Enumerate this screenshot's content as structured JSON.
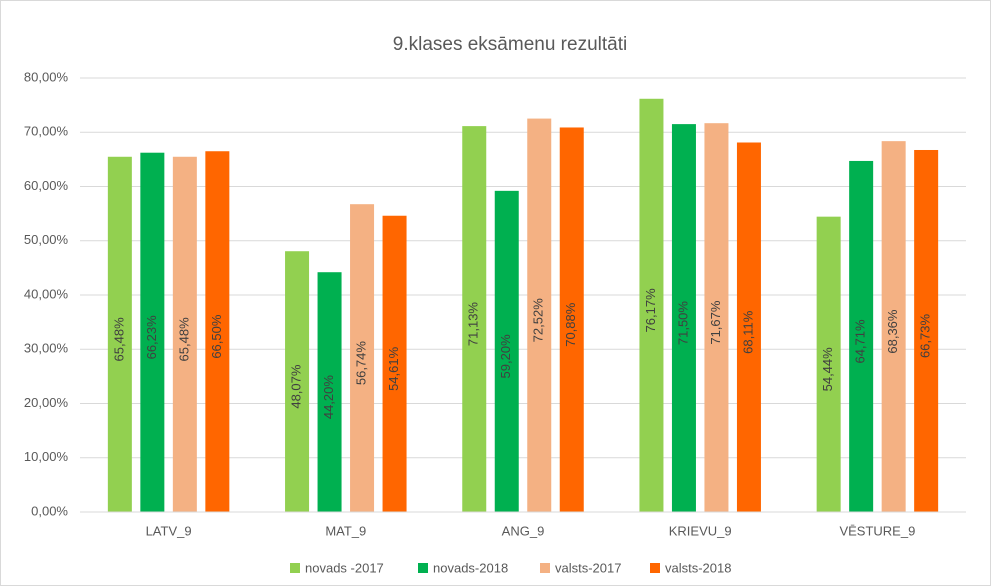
{
  "chart_data": {
    "type": "bar",
    "title": "9.klases eksāmenu rezultāti",
    "categories": [
      "LATV_9",
      "MAT_9",
      "ANG_9",
      "KRIEVU_9",
      "VĒSTURE_9"
    ],
    "series": [
      {
        "name": "novads -2017",
        "color": "#92d050",
        "values": [
          65.48,
          48.07,
          71.13,
          76.17,
          54.44
        ],
        "value_labels": [
          "65,48%",
          "48,07%",
          "71,13%",
          "76,17%",
          "54,44%"
        ]
      },
      {
        "name": "novads-2018",
        "color": "#00b050",
        "values": [
          66.23,
          44.2,
          59.2,
          71.5,
          64.71
        ],
        "value_labels": [
          "66,23%",
          "44,20%",
          "59,20%",
          "71,50%",
          "64,71%"
        ]
      },
      {
        "name": "valsts-2017",
        "color": "#f4b183",
        "values": [
          65.48,
          56.74,
          72.52,
          71.67,
          68.36
        ],
        "value_labels": [
          "65,48%",
          "56,74%",
          "72,52%",
          "71,67%",
          "68,36%"
        ]
      },
      {
        "name": "valsts-2018",
        "color": "#ff6600",
        "values": [
          66.5,
          54.61,
          70.88,
          68.11,
          66.73
        ],
        "value_labels": [
          "66,50%",
          "54,61%",
          "70,88%",
          "68,11%",
          "66,73%"
        ]
      }
    ],
    "ylim": [
      0,
      80
    ],
    "yticks": [
      {
        "value": 0,
        "label": "0,00%"
      },
      {
        "value": 10,
        "label": "10,00%"
      },
      {
        "value": 20,
        "label": "20,00%"
      },
      {
        "value": 30,
        "label": "30,00%"
      },
      {
        "value": 40,
        "label": "40,00%"
      },
      {
        "value": 50,
        "label": "50,00%"
      },
      {
        "value": 60,
        "label": "60,00%"
      },
      {
        "value": 70,
        "label": "70,00%"
      },
      {
        "value": 80,
        "label": "80,00%"
      }
    ],
    "grid": true,
    "legend": "bottom"
  }
}
